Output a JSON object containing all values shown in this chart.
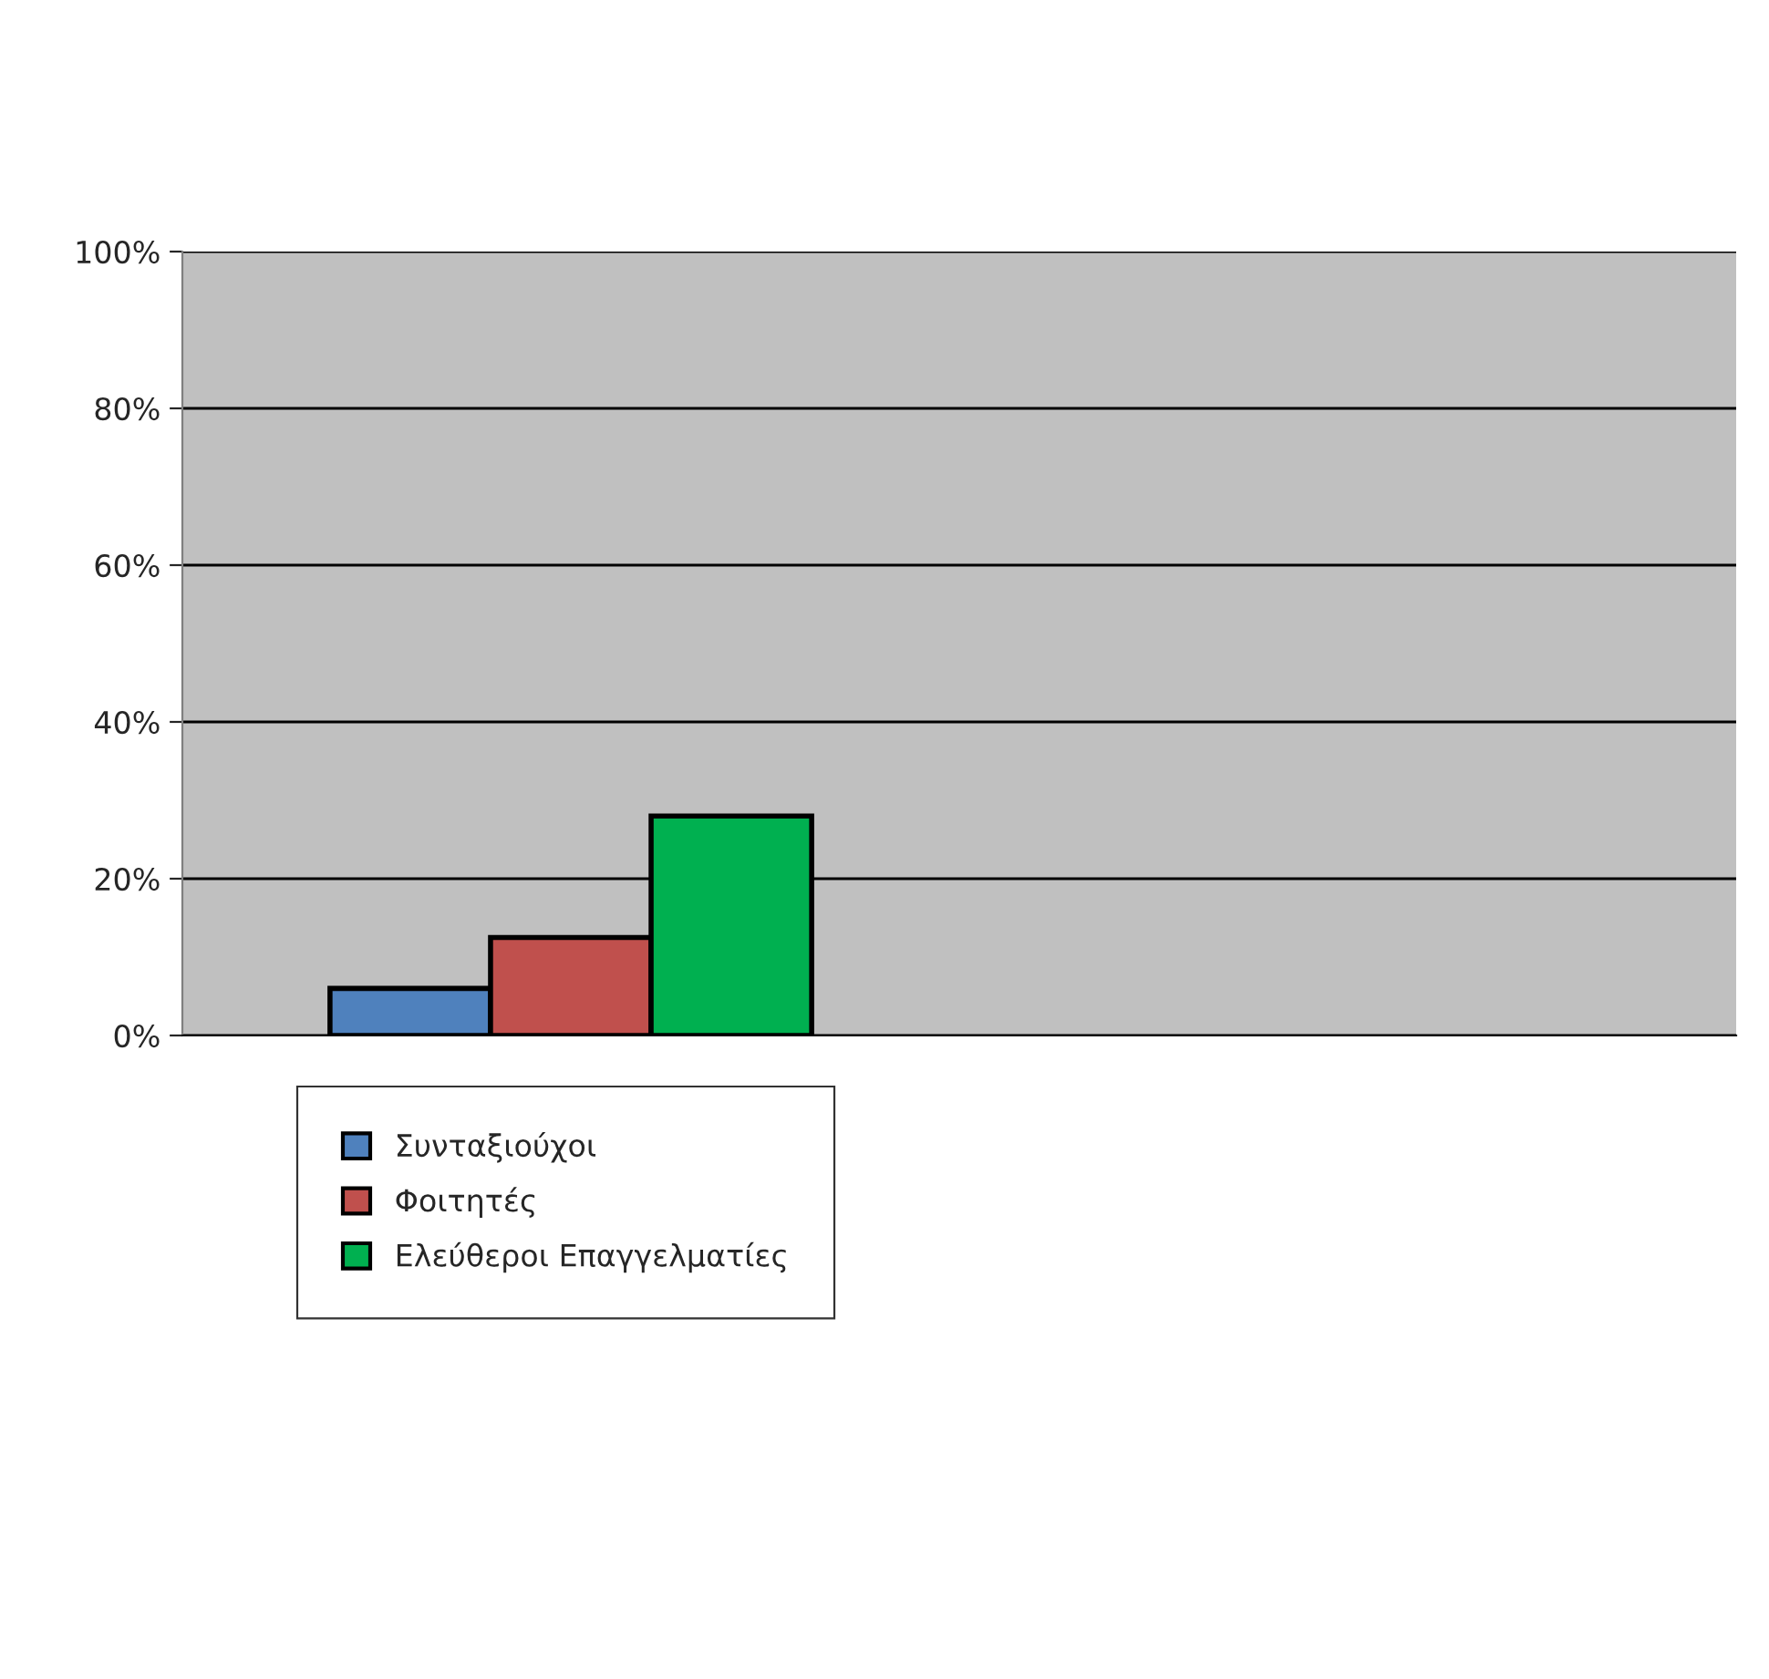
{
  "chart_data": {
    "type": "bar",
    "categories": [
      null,
      null
    ],
    "series": [
      {
        "name": "Συνταξιούχοι",
        "color": "#4f81bd",
        "values": [
          6,
          null
        ]
      },
      {
        "name": "Φοιτητές",
        "color": "#c0504d",
        "values": [
          12.5,
          null
        ]
      },
      {
        "name": "Ελεύθεροι Επαγγελματίες",
        "color": "#00b050",
        "values": [
          28,
          null
        ]
      }
    ],
    "ylim": [
      0,
      100
    ],
    "yticks": [
      {
        "value": 0,
        "label": "0%"
      },
      {
        "value": 20,
        "label": "20%"
      },
      {
        "value": 40,
        "label": "40%"
      },
      {
        "value": 60,
        "label": "60%"
      },
      {
        "value": 80,
        "label": "80%"
      },
      {
        "value": 100,
        "label": "100%"
      }
    ],
    "grid": "y",
    "legend": "bottom"
  }
}
